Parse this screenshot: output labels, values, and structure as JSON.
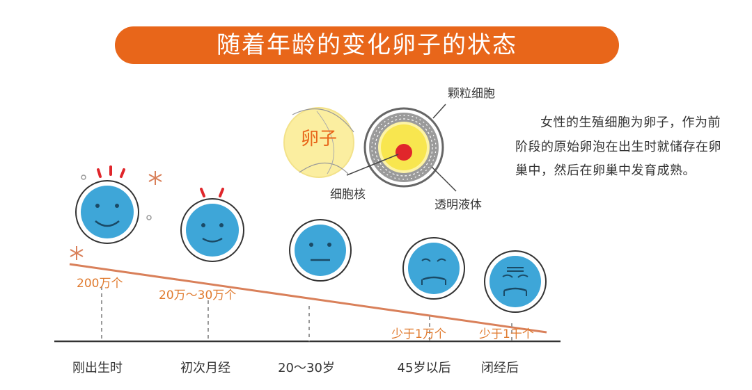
{
  "title": "随着年龄的变化卵子的状态",
  "description": "女性的生殖细胞为卵子，作为前阶段的原始卵泡在出生时就储存在卵巢中，然后在卵巢中发育成熟。",
  "egg_diagram": {
    "egg_label": "卵子",
    "granulosa_label": "颗粒细胞",
    "nucleus_label": "细胞核",
    "fluid_label": "透明液体"
  },
  "stages": [
    {
      "stage": "刚出生时",
      "count": "200万个",
      "mood": "very-happy"
    },
    {
      "stage": "初次月经",
      "count": "20万～30万个",
      "mood": "happy"
    },
    {
      "stage": "20～30岁",
      "count": "",
      "mood": "neutral"
    },
    {
      "stage": "45岁以后",
      "count": "少于1万个",
      "mood": "worried"
    },
    {
      "stage": "闭经后",
      "count": "少于1千个",
      "mood": "distressed"
    }
  ],
  "colors": {
    "accent": "#e8661a",
    "line": "#d9805a",
    "face": "#3ea6d8",
    "egg_yellow": "#fbea7a",
    "nucleus": "#e0262b"
  }
}
